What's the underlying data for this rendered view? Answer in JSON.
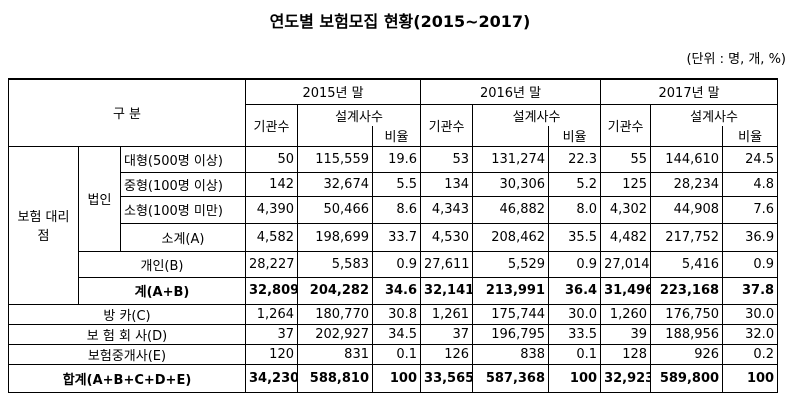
{
  "title": "연도별 보험모집 현황(2015~2017)",
  "unit": "(단위 : 명, 개, %)",
  "header": {
    "category": "구 분",
    "years": [
      "2015년 말",
      "2016년 말",
      "2017년 말"
    ],
    "columns": [
      "기관수",
      "설계사수",
      "비율"
    ]
  },
  "groups": [
    "보험 대리점",
    "법인"
  ],
  "rows": [
    {
      "label": "대형(500명 이상)",
      "values": [
        "50",
        "115,559",
        "19.6",
        "53",
        "131,274",
        "22.3",
        "55",
        "144,610",
        "24.5"
      ]
    },
    {
      "label": "중형(100명 이상)",
      "values": [
        "142",
        "32,674",
        "5.5",
        "134",
        "30,306",
        "5.2",
        "125",
        "28,234",
        "4.8"
      ]
    },
    {
      "label": "소형(100명 미만)",
      "values": [
        "4,390",
        "50,466",
        "8.6",
        "4,343",
        "46,882",
        "8.0",
        "4,302",
        "44,908",
        "7.6"
      ]
    },
    {
      "label": "소계(A)",
      "values": [
        "4,582",
        "198,699",
        "33.7",
        "4,530",
        "208,462",
        "35.5",
        "4,482",
        "217,752",
        "36.9"
      ]
    },
    {
      "label": "개인(B)",
      "values": [
        "28,227",
        "5,583",
        "0.9",
        "27,611",
        "5,529",
        "0.9",
        "27,014",
        "5,416",
        "0.9"
      ]
    },
    {
      "label": "계(A+B)",
      "values": [
        "32,809",
        "204,282",
        "34.6",
        "32,141",
        "213,991",
        "36.4",
        "31,496",
        "223,168",
        "37.8"
      ]
    },
    {
      "label": "방 카(C)",
      "values": [
        "1,264",
        "180,770",
        "30.8",
        "1,261",
        "175,744",
        "30.0",
        "1,260",
        "176,750",
        "30.0"
      ]
    },
    {
      "label": "보 험 회 사(D)",
      "values": [
        "37",
        "202,927",
        "34.5",
        "37",
        "196,795",
        "33.5",
        "39",
        "188,956",
        "32.0"
      ]
    },
    {
      "label": "보험중개사(E)",
      "values": [
        "120",
        "831",
        "0.1",
        "126",
        "838",
        "0.1",
        "128",
        "926",
        "0.2"
      ]
    },
    {
      "label": "합계(A+B+C+D+E)",
      "values": [
        "34,230",
        "588,810",
        "100",
        "33,565",
        "587,368",
        "100",
        "32,923",
        "589,800",
        "100"
      ]
    }
  ]
}
